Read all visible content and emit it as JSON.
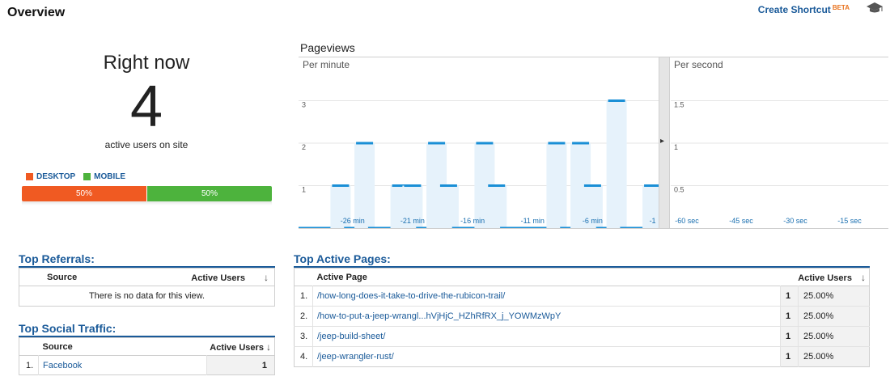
{
  "header": {
    "title": "Overview",
    "shortcut_label": "Create Shortcut",
    "shortcut_badge": "BETA",
    "icon": "graduation-cap-icon"
  },
  "right_now": {
    "label": "Right now",
    "count": "4",
    "sub": "active users on site",
    "legend": [
      {
        "label": "DESKTOP",
        "color": "#f05a22"
      },
      {
        "label": "MOBILE",
        "color": "#4db33d"
      }
    ],
    "split": [
      {
        "label": "50%",
        "value": 50,
        "color": "#f05a22"
      },
      {
        "label": "50%",
        "value": 50,
        "color": "#4db33d"
      }
    ]
  },
  "pageviews": {
    "title": "Pageviews",
    "per_minute_label": "Per minute",
    "per_second_label": "Per second",
    "bar_color": "#1a8fd6",
    "fill_color": "#e6f2fb"
  },
  "chart_data": [
    {
      "type": "bar",
      "title": "Per minute",
      "x": [
        -30,
        -29,
        -28,
        -27,
        -26,
        -25,
        -24,
        -23,
        -22,
        -21,
        -20,
        -19,
        -18,
        -17,
        -16,
        -15,
        -14,
        -13,
        -12,
        -11,
        -10,
        -9,
        -8,
        -7,
        -6,
        -5,
        -4,
        -3,
        -2,
        -1
      ],
      "values": [
        0,
        0,
        0,
        1,
        0,
        2,
        0,
        0,
        1,
        1,
        0,
        2,
        1,
        0,
        0,
        2,
        1,
        0,
        0,
        0,
        0,
        2,
        0,
        2,
        1,
        0,
        3,
        0,
        0,
        1
      ],
      "yticks": [
        "1",
        "2",
        "3"
      ],
      "xticks": [
        "-26 min",
        "-21 min",
        "-16 min",
        "-11 min",
        "-6 min",
        "-1"
      ],
      "xtick_positions": [
        -26,
        -21,
        -16,
        -11,
        -6,
        -1
      ],
      "ylim": [
        0,
        3
      ],
      "grid": true
    },
    {
      "type": "bar",
      "title": "Per second",
      "x": [],
      "values": [],
      "yticks": [
        "0.5",
        "1",
        "1.5"
      ],
      "xticks": [
        "-60 sec",
        "-45 sec",
        "-30 sec",
        "-15 sec"
      ],
      "xtick_positions": [
        -60,
        -45,
        -30,
        -15
      ],
      "ylim": [
        0,
        1.5
      ],
      "grid": true
    }
  ],
  "referrals": {
    "title": "Top Referrals:",
    "col_source": "Source",
    "col_users": "Active Users",
    "empty": "There is no data for this view."
  },
  "social": {
    "title": "Top Social Traffic:",
    "col_source": "Source",
    "col_users": "Active Users",
    "rows": [
      {
        "index": "1.",
        "source": "Facebook",
        "users": "1"
      }
    ]
  },
  "active_pages": {
    "title": "Top Active Pages:",
    "col_page": "Active Page",
    "col_users": "Active Users",
    "rows": [
      {
        "index": "1.",
        "page": "/how-long-does-it-take-to-drive-the-rubicon-trail/",
        "users": "1",
        "percent": "25.00%"
      },
      {
        "index": "2.",
        "page": "/how-to-put-a-jeep-wrangl...hVjHjC_HZhRfRX_j_YOWMzWpY",
        "users": "1",
        "percent": "25.00%"
      },
      {
        "index": "3.",
        "page": "/jeep-build-sheet/",
        "users": "1",
        "percent": "25.00%"
      },
      {
        "index": "4.",
        "page": "/jeep-wrangler-rust/",
        "users": "1",
        "percent": "25.00%"
      }
    ]
  }
}
